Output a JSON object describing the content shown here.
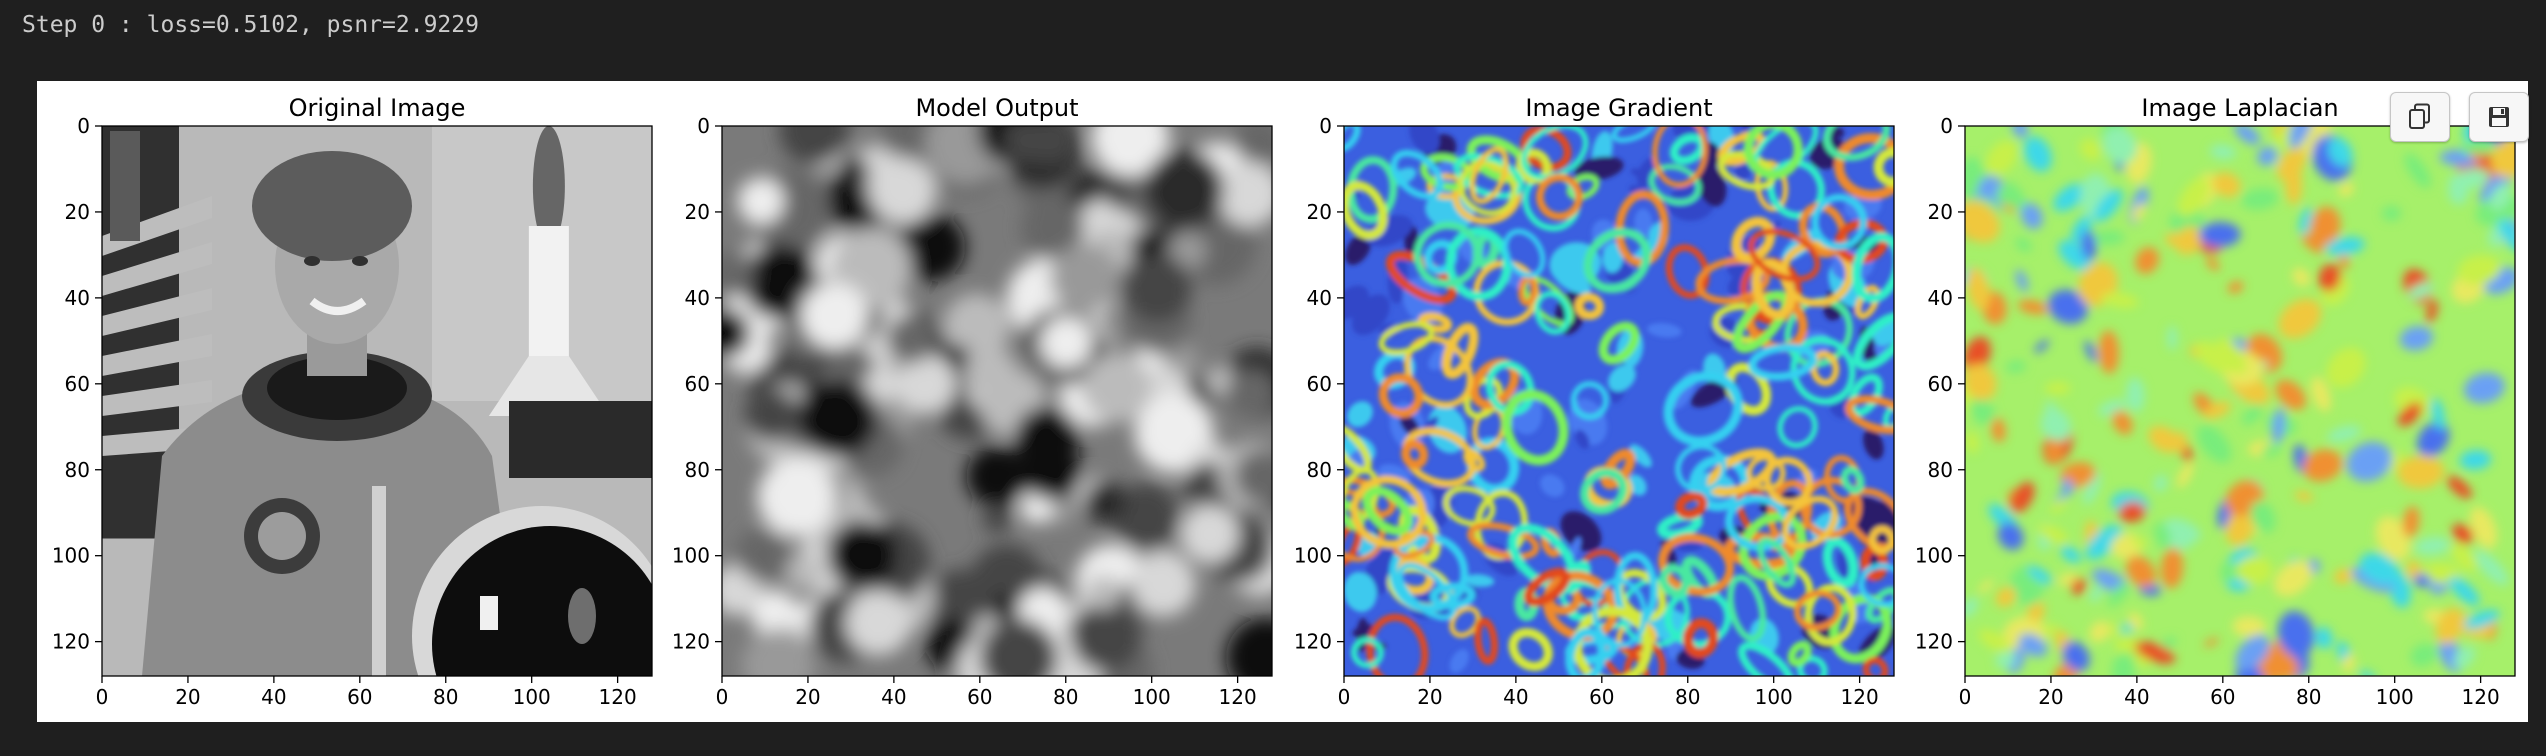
{
  "output": {
    "step_line": "Step 0 : loss=0.5102, psnr=2.9229"
  },
  "toolbar": {
    "copy_icon": "copy-icon",
    "save_icon": "floppy-disk-icon"
  },
  "colors": {
    "page_background": "#1f1f1f",
    "figure_background": "#ffffff"
  },
  "chart_data": [
    {
      "type": "heatmap",
      "title": "Original Image",
      "colormap": "gray",
      "xticks": [
        "0",
        "20",
        "40",
        "60",
        "80",
        "100",
        "120"
      ],
      "yticks": [
        "0",
        "20",
        "40",
        "60",
        "80",
        "100",
        "120"
      ],
      "xlim": [
        0,
        128
      ],
      "ylim": [
        128,
        0
      ]
    },
    {
      "type": "heatmap",
      "title": "Model Output",
      "colormap": "gray",
      "xticks": [
        "0",
        "20",
        "40",
        "60",
        "80",
        "100",
        "120"
      ],
      "yticks": [
        "0",
        "20",
        "40",
        "60",
        "80",
        "100",
        "120"
      ],
      "xlim": [
        0,
        128
      ],
      "ylim": [
        128,
        0
      ]
    },
    {
      "type": "heatmap",
      "title": "Image Gradient",
      "colormap": "turbo",
      "xticks": [
        "0",
        "20",
        "40",
        "60",
        "80",
        "100",
        "120"
      ],
      "yticks": [
        "0",
        "20",
        "40",
        "60",
        "80",
        "100",
        "120"
      ],
      "xlim": [
        0,
        128
      ],
      "ylim": [
        128,
        0
      ]
    },
    {
      "type": "heatmap",
      "title": "Image Laplacian",
      "colormap": "turbo",
      "xticks": [
        "0",
        "20",
        "40",
        "60",
        "80",
        "100",
        "120"
      ],
      "yticks": [
        "0",
        "20",
        "40",
        "60",
        "80",
        "100",
        "120"
      ],
      "xlim": [
        0,
        128
      ],
      "ylim": [
        128,
        0
      ]
    }
  ]
}
